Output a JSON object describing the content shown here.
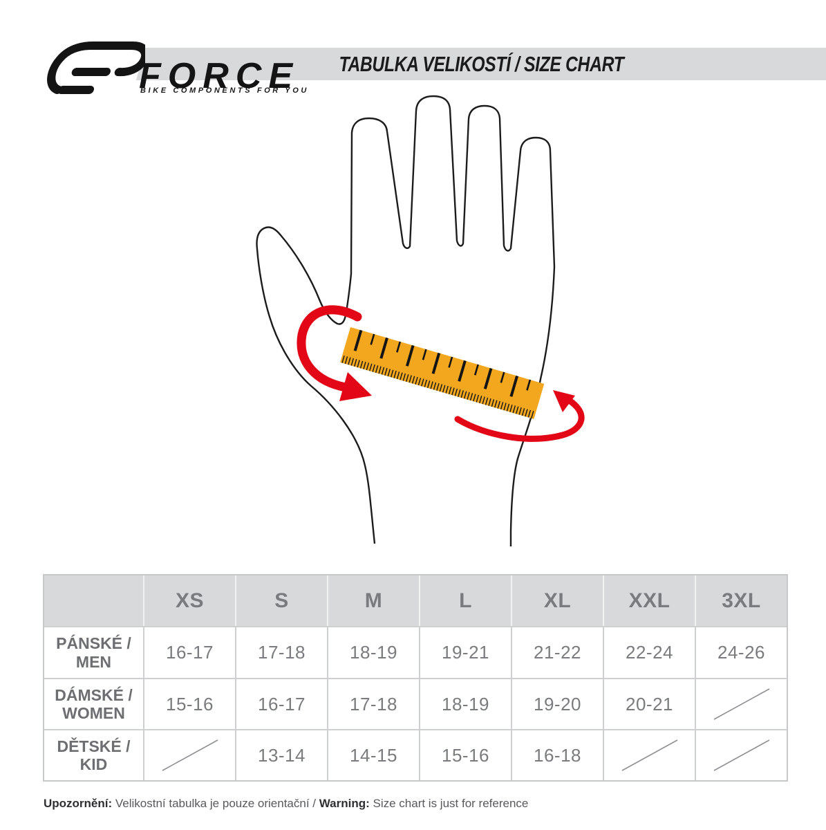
{
  "brand": {
    "name": "FORCE",
    "tagline": "BIKE COMPONENTS FOR YOU"
  },
  "header": {
    "title": "TABULKA VELIKOSTÍ / SIZE CHART"
  },
  "illustration": {
    "subject": "open hand with measuring tape wrapped around palm",
    "tape_color": "#f2a71f",
    "arrow_color": "#e30617",
    "outline_color": "#1c1c1c"
  },
  "size_table": {
    "columns": [
      "XS",
      "S",
      "M",
      "L",
      "XL",
      "XXL",
      "3XL"
    ],
    "rows": [
      {
        "label_lines": [
          "PÁNSKÉ /",
          "MEN"
        ],
        "values": [
          "16-17",
          "17-18",
          "18-19",
          "19-21",
          "21-22",
          "22-24",
          "24-26"
        ]
      },
      {
        "label_lines": [
          "DÁMSKÉ /",
          "WOMEN"
        ],
        "values": [
          "15-16",
          "16-17",
          "17-18",
          "18-19",
          "19-20",
          "20-21",
          null
        ]
      },
      {
        "label_lines": [
          "DĚTSKÉ /",
          "KID"
        ],
        "values": [
          null,
          "13-14",
          "14-15",
          "15-16",
          "16-18",
          null,
          null
        ]
      }
    ]
  },
  "footer": {
    "segments": [
      {
        "text": "Upozornění:",
        "bold": true
      },
      {
        "text": " Velikostní tabulka je pouze orientační / ",
        "bold": false
      },
      {
        "text": "Warning:",
        "bold": true
      },
      {
        "text": " Size chart is just for reference",
        "bold": false
      }
    ]
  },
  "colors": {
    "banner_gray": "#d8d9db",
    "border_gray": "#cdcfd1",
    "text_gray": "#797b7e"
  }
}
